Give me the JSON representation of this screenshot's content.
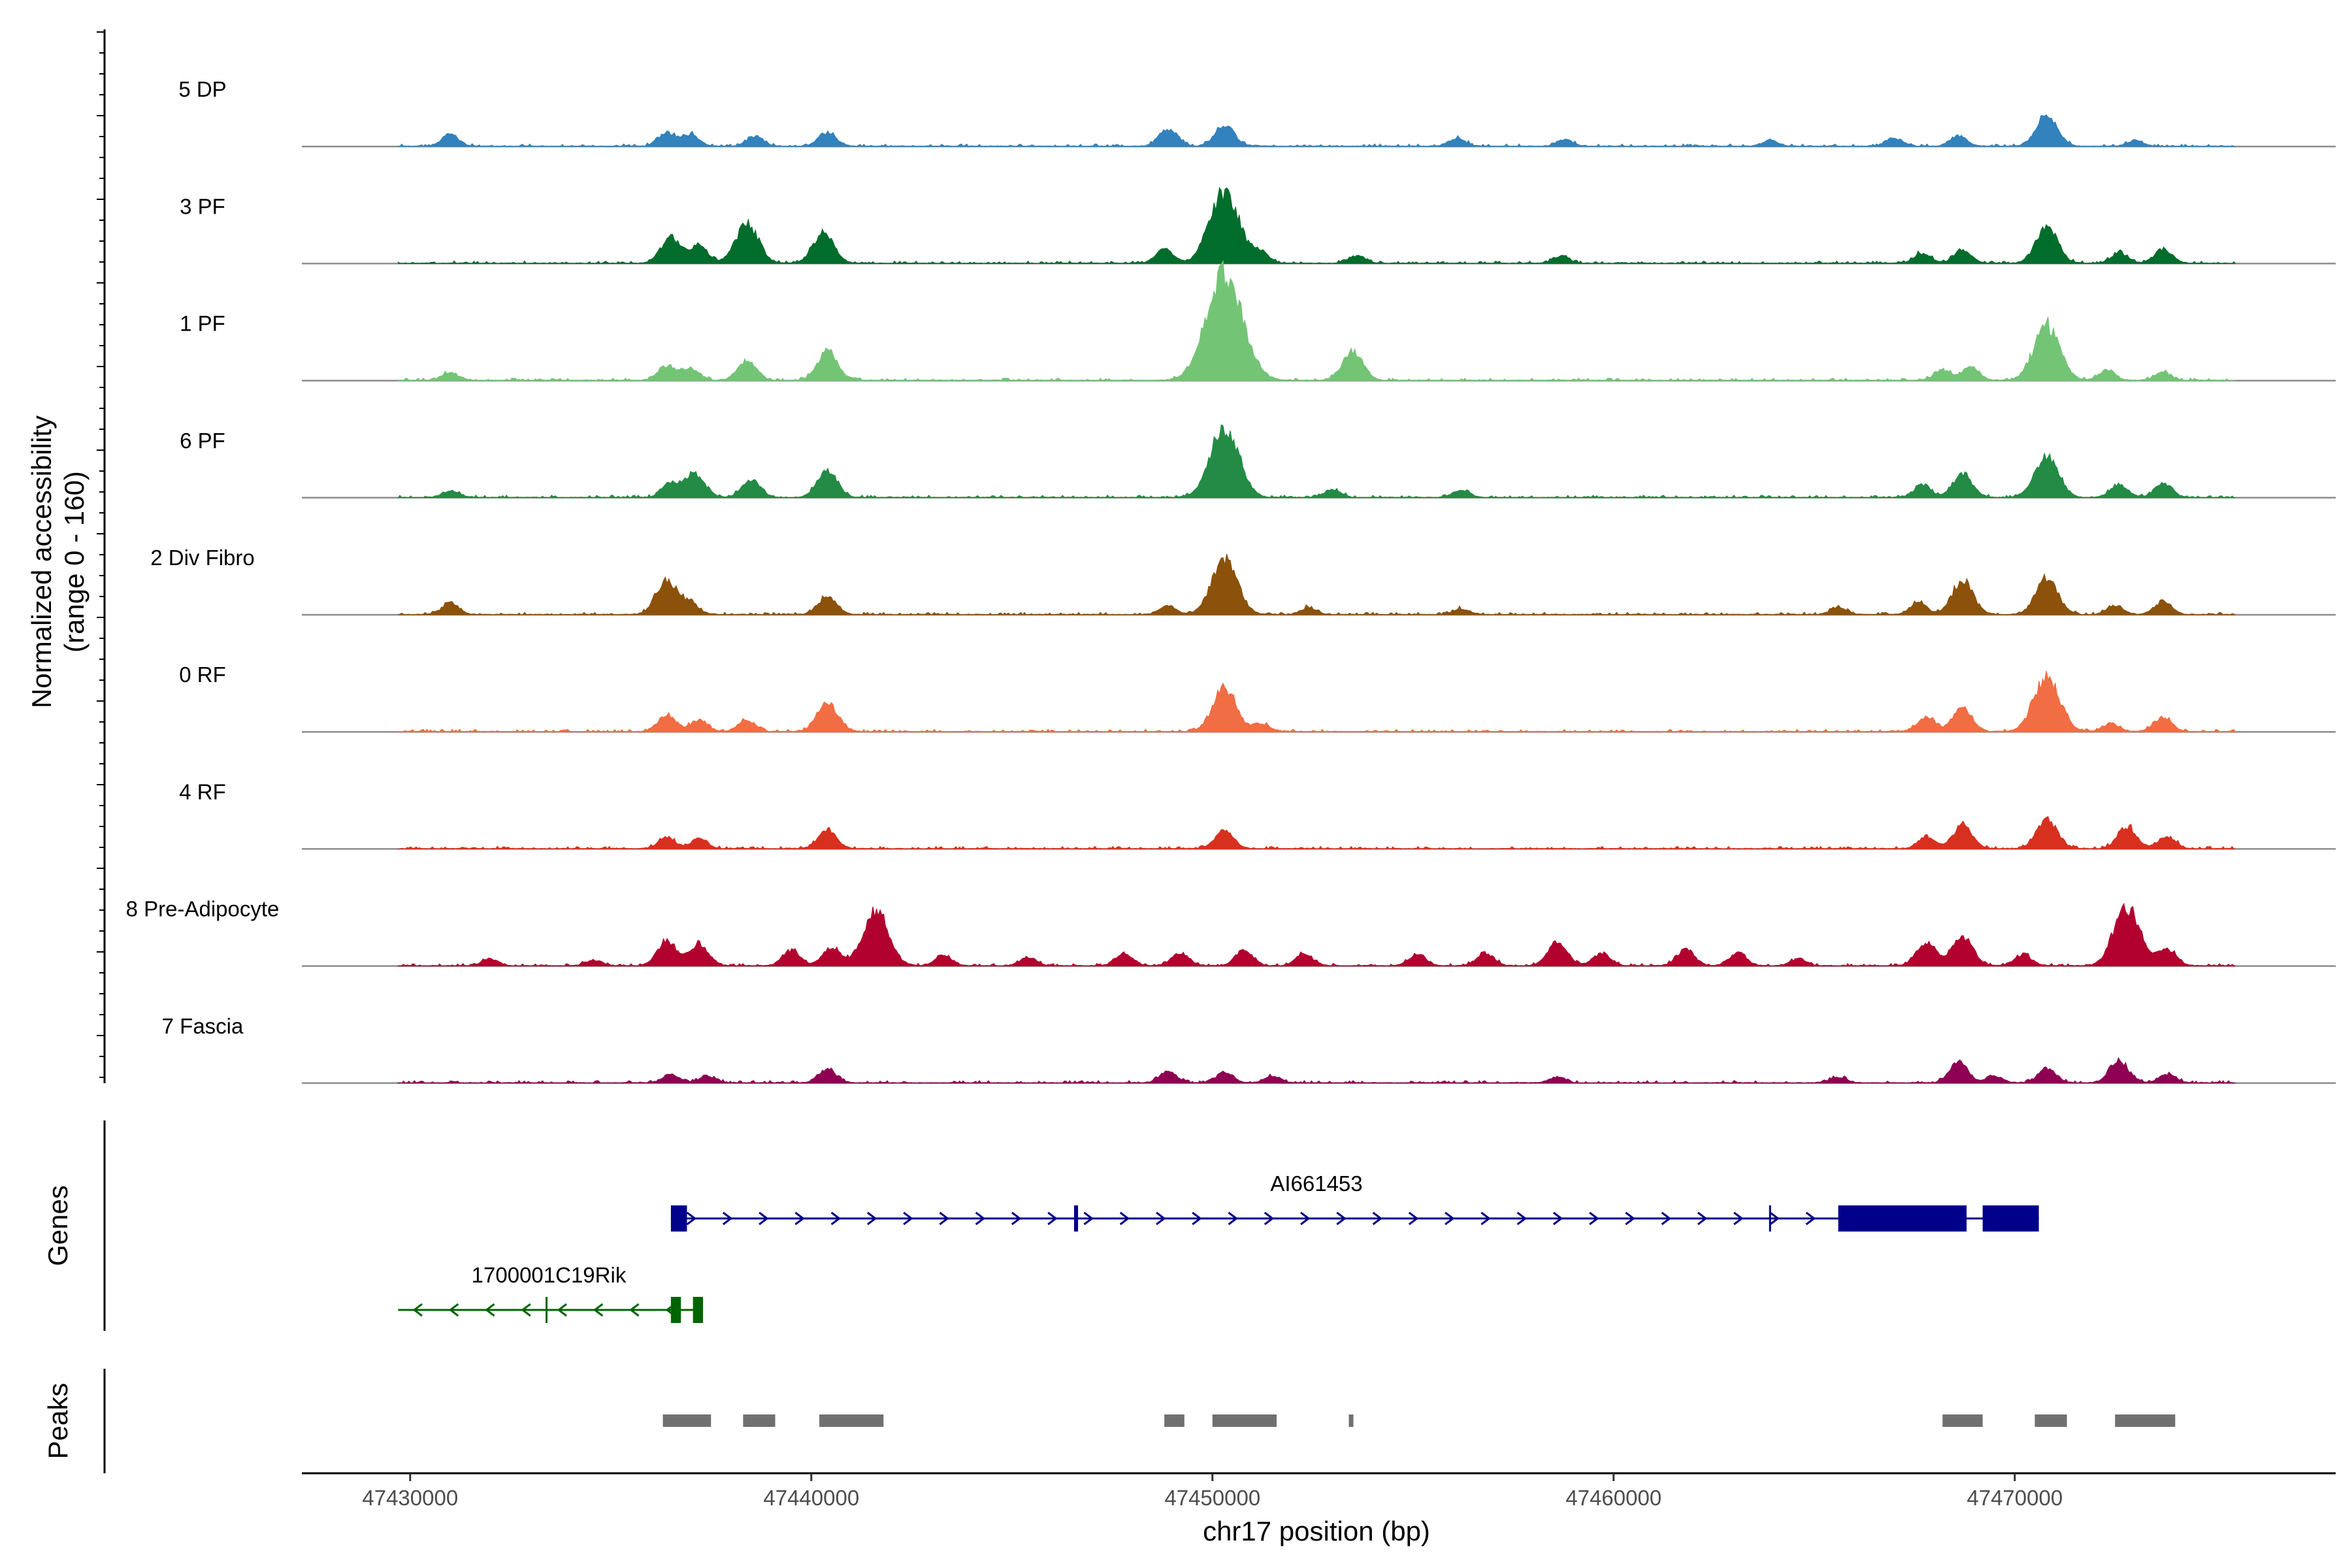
{
  "chart_data": {
    "type": "area",
    "title": "",
    "xlabel": "chr17 position (bp)",
    "ylabel": "Normalized accessibility\n(range 0 - 160)",
    "ylabel_line1": "Normalized accessibility",
    "ylabel_line2": "(range 0 - 160)",
    "xlim": [
      47427300,
      47478000
    ],
    "ylim": [
      0,
      160
    ],
    "x_ticks": [
      47430000,
      47440000,
      47450000,
      47460000,
      47470000
    ],
    "x_tick_labels": [
      "47430000",
      "47440000",
      "47450000",
      "47460000",
      "47470000"
    ],
    "signal_range": [
      47429700,
      47475500
    ],
    "series": [
      {
        "name": "5 DP",
        "color": "#3182bd",
        "peaks": [
          [
            47431000,
            20
          ],
          [
            47436400,
            24
          ],
          [
            47437000,
            20
          ],
          [
            47438600,
            17
          ],
          [
            47440400,
            25
          ],
          [
            47448900,
            30
          ],
          [
            47450300,
            38
          ],
          [
            47456100,
            14
          ],
          [
            47458800,
            11
          ],
          [
            47463900,
            10
          ],
          [
            47467000,
            15
          ],
          [
            47468600,
            18
          ],
          [
            47470800,
            55
          ],
          [
            47473000,
            10
          ]
        ]
      },
      {
        "name": "3 PF",
        "color": "#006d2c",
        "peaks": [
          [
            47436500,
            45
          ],
          [
            47437200,
            30
          ],
          [
            47438400,
            68
          ],
          [
            47440300,
            52
          ],
          [
            47448800,
            25
          ],
          [
            47450300,
            125
          ],
          [
            47451200,
            18
          ],
          [
            47453600,
            14
          ],
          [
            47458700,
            12
          ],
          [
            47467700,
            18
          ],
          [
            47468700,
            22
          ],
          [
            47470800,
            62
          ],
          [
            47472600,
            18
          ],
          [
            47473700,
            25
          ]
        ]
      },
      {
        "name": "1 PF",
        "color": "#74c476",
        "peaks": [
          [
            47431000,
            14
          ],
          [
            47436400,
            25
          ],
          [
            47437000,
            20
          ],
          [
            47438400,
            35
          ],
          [
            47440400,
            50
          ],
          [
            47450300,
            185
          ],
          [
            47453500,
            50
          ],
          [
            47468200,
            18
          ],
          [
            47468900,
            22
          ],
          [
            47470800,
            95
          ],
          [
            47472300,
            18
          ],
          [
            47473700,
            14
          ]
        ]
      },
      {
        "name": "6 PF",
        "color": "#238b45",
        "peaks": [
          [
            47431000,
            12
          ],
          [
            47436500,
            25
          ],
          [
            47437100,
            42
          ],
          [
            47438500,
            30
          ],
          [
            47440400,
            45
          ],
          [
            47450300,
            120
          ],
          [
            47453000,
            14
          ],
          [
            47456200,
            13
          ],
          [
            47467700,
            22
          ],
          [
            47468700,
            42
          ],
          [
            47470800,
            75
          ],
          [
            47472600,
            22
          ],
          [
            47473700,
            25
          ]
        ]
      },
      {
        "name": "2 Div Fibro",
        "color": "#8c510a",
        "peaks": [
          [
            47431000,
            20
          ],
          [
            47436400,
            58
          ],
          [
            47437000,
            18
          ],
          [
            47440400,
            30
          ],
          [
            47448900,
            15
          ],
          [
            47450300,
            95
          ],
          [
            47452400,
            12
          ],
          [
            47456200,
            10
          ],
          [
            47465600,
            13
          ],
          [
            47467600,
            20
          ],
          [
            47468700,
            58
          ],
          [
            47470800,
            62
          ],
          [
            47472500,
            15
          ],
          [
            47473700,
            22
          ]
        ]
      },
      {
        "name": "0 RF",
        "color": "#f16d43",
        "peaks": [
          [
            47436400,
            30
          ],
          [
            47437200,
            20
          ],
          [
            47438400,
            20
          ],
          [
            47440400,
            50
          ],
          [
            47450300,
            75
          ],
          [
            47451200,
            14
          ],
          [
            47467800,
            25
          ],
          [
            47468700,
            40
          ],
          [
            47470800,
            95
          ],
          [
            47472400,
            14
          ],
          [
            47473700,
            25
          ]
        ]
      },
      {
        "name": "4 RF",
        "color": "#d7301f",
        "peaks": [
          [
            47436400,
            20
          ],
          [
            47437200,
            17
          ],
          [
            47440400,
            32
          ],
          [
            47450300,
            32
          ],
          [
            47467800,
            20
          ],
          [
            47468700,
            40
          ],
          [
            47470800,
            52
          ],
          [
            47472800,
            38
          ],
          [
            47473800,
            22
          ]
        ]
      },
      {
        "name": "8 Pre-Adipocyte",
        "color": "#b2002f",
        "peaks": [
          [
            47432000,
            12
          ],
          [
            47434600,
            10
          ],
          [
            47436400,
            42
          ],
          [
            47437200,
            38
          ],
          [
            47439500,
            26
          ],
          [
            47440500,
            30
          ],
          [
            47441600,
            95
          ],
          [
            47443300,
            18
          ],
          [
            47445400,
            15
          ],
          [
            47447800,
            22
          ],
          [
            47449200,
            22
          ],
          [
            47450800,
            26
          ],
          [
            47452300,
            20
          ],
          [
            47455100,
            20
          ],
          [
            47456800,
            22
          ],
          [
            47458600,
            40
          ],
          [
            47459700,
            22
          ],
          [
            47461800,
            28
          ],
          [
            47463100,
            22
          ],
          [
            47464600,
            12
          ],
          [
            47467800,
            40
          ],
          [
            47468700,
            50
          ],
          [
            47470200,
            20
          ],
          [
            47472800,
            100
          ],
          [
            47473800,
            28
          ]
        ]
      },
      {
        "name": "7 Fascia",
        "color": "#8e0152",
        "peaks": [
          [
            47436500,
            15
          ],
          [
            47437400,
            12
          ],
          [
            47440400,
            25
          ],
          [
            47448900,
            20
          ],
          [
            47450300,
            18
          ],
          [
            47451500,
            12
          ],
          [
            47458600,
            10
          ],
          [
            47465600,
            10
          ],
          [
            47468600,
            35
          ],
          [
            47469500,
            12
          ],
          [
            47470800,
            25
          ],
          [
            47472600,
            38
          ],
          [
            47473800,
            15
          ]
        ]
      }
    ]
  },
  "panels": {
    "genes_title": "Genes",
    "peaks_title": "Peaks"
  },
  "genes": [
    {
      "name": "AI661453",
      "color": "#00008b",
      "strand": "+",
      "start": 47436500,
      "end": 47470600,
      "exons": [
        [
          47436500,
          47436900
        ],
        [
          47446550,
          47446650
        ],
        [
          47465600,
          47468800
        ],
        [
          47469200,
          47470600
        ]
      ],
      "thin_marks": [
        47463900
      ]
    },
    {
      "name": "1700001C19Rik",
      "color": "#006400",
      "strand": "-",
      "start": 47429700,
      "end": 47437300,
      "exons": [
        [
          47436500,
          47436750
        ],
        [
          47437050,
          47437300
        ]
      ],
      "thin_marks": [
        47433400
      ]
    }
  ],
  "peaks": [
    [
      47436300,
      47437500
    ],
    [
      47438300,
      47439100
    ],
    [
      47440200,
      47441800
    ],
    [
      47448800,
      47449300
    ],
    [
      47450000,
      47451600
    ],
    [
      47453400,
      47453500
    ],
    [
      47468200,
      47469200
    ],
    [
      47470500,
      47471300
    ],
    [
      47472500,
      47474000
    ]
  ],
  "peak_color": "#707070"
}
